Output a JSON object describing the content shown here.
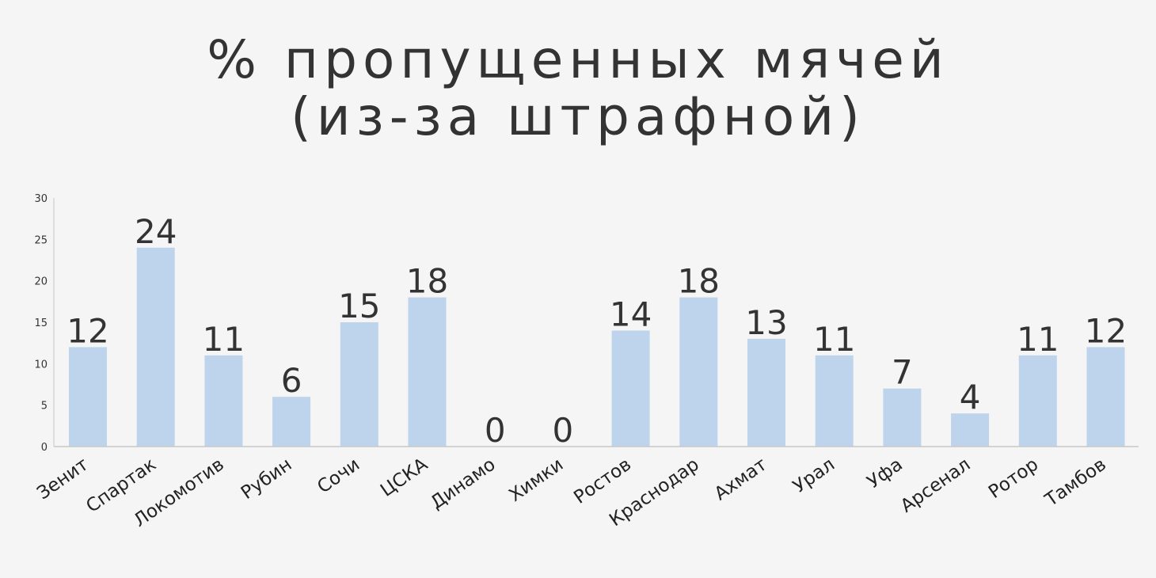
{
  "chart_data": {
    "type": "bar",
    "title_lines": [
      "% пропущенных мячей",
      "(из-за штрафной)"
    ],
    "categories": [
      "Зенит",
      "Спартак",
      "Локомотив",
      "Рубин",
      "Сочи",
      "ЦСКА",
      "Динамо",
      "Химки",
      "Ростов",
      "Краснодар",
      "Ахмат",
      "Урал",
      "Уфа",
      "Арсенал",
      "Ротор",
      "Тамбов"
    ],
    "values": [
      12,
      24,
      11,
      6,
      15,
      18,
      0,
      0,
      14,
      18,
      13,
      11,
      7,
      4,
      11,
      12
    ],
    "data_labels": [
      "12",
      "24",
      "11",
      "6",
      "15",
      "18",
      "0",
      "0",
      "14",
      "18",
      "13",
      "11",
      "7",
      "4",
      "11",
      "12"
    ],
    "ylim": [
      0,
      30
    ],
    "yticks": [
      "0",
      "5",
      "10",
      "15",
      "20",
      "25",
      "30"
    ],
    "xlabel": "",
    "ylabel": "",
    "grid": false,
    "legend": "none",
    "bar_color": "#bdd4ec",
    "axis_color": "#c8c8c8"
  }
}
